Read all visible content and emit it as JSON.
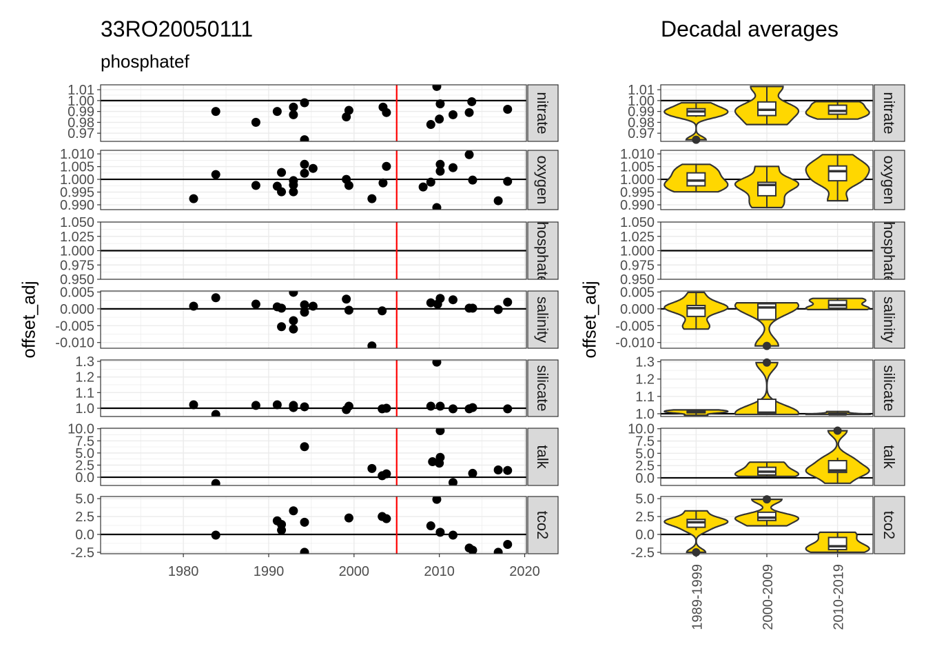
{
  "title": "33RO20050111",
  "subtitle": "phosphatef",
  "right_title": "Decadal averages",
  "ylabel": "offset_adj",
  "chart_data": [
    {
      "type": "scatter",
      "title": "33RO20050111",
      "subtitle": "phosphatef",
      "xlabel": "",
      "ylabel": "offset_adj",
      "xlim": [
        1970.3,
        2020.2
      ],
      "xticks": [
        "1980",
        "1990",
        "2000",
        "2010",
        "2020"
      ],
      "vline": {
        "x": 2005,
        "color": "#FF0000"
      },
      "grid": true,
      "point_color": "#000000",
      "facets": [
        {
          "name": "nitrate",
          "ref": 1,
          "ylim": [
            0.9625,
            1.0145
          ],
          "ticks": [
            "0.97",
            "0.98",
            "0.99",
            "1.00",
            "1.01"
          ],
          "points": [
            [
              1983.8,
              0.99
            ],
            [
              1988.5,
              0.98
            ],
            [
              1991.0,
              0.99
            ],
            [
              1992.9,
              0.994
            ],
            [
              1992.9,
              0.987
            ],
            [
              1994.2,
              0.998
            ],
            [
              1994.2,
              0.964
            ],
            [
              1999.1,
              0.985
            ],
            [
              1999.4,
              0.991
            ],
            [
              2003.4,
              0.994
            ],
            [
              2003.8,
              0.989
            ],
            [
              2009.0,
              0.978
            ],
            [
              2009.7,
              1.013
            ],
            [
              2010.0,
              0.983
            ],
            [
              2010.1,
              0.997
            ],
            [
              2011.6,
              0.987
            ],
            [
              2013.5,
              0.989
            ],
            [
              2013.8,
              0.999
            ],
            [
              2018.0,
              0.992
            ]
          ]
        },
        {
          "name": "oxygen",
          "ref": 1,
          "ylim": [
            0.9881,
            1.0114
          ],
          "ticks": [
            "0.990",
            "0.995",
            "1.000",
            "1.005",
            "1.010"
          ],
          "points": [
            [
              1981.2,
              0.9924
            ],
            [
              1983.8,
              1.0019
            ],
            [
              1988.5,
              0.9976
            ],
            [
              1991.0,
              0.9973
            ],
            [
              1991.5,
              0.9951
            ],
            [
              1991.5,
              1.0027
            ],
            [
              1992.9,
              0.9995
            ],
            [
              1992.9,
              0.9978
            ],
            [
              1992.9,
              0.9951
            ],
            [
              1994.2,
              1.0059
            ],
            [
              1994.2,
              1.0024
            ],
            [
              1995.2,
              1.0043
            ],
            [
              1999.1,
              1.0
            ],
            [
              1999.4,
              0.9976
            ],
            [
              2002.1,
              0.9924
            ],
            [
              2003.4,
              0.9986
            ],
            [
              2003.8,
              1.0051
            ],
            [
              2008.1,
              0.997
            ],
            [
              2009.0,
              0.9989
            ],
            [
              2009.7,
              0.9889
            ],
            [
              2010.1,
              1.0032
            ],
            [
              2010.1,
              1.0059
            ],
            [
              2011.6,
              1.0046
            ],
            [
              2013.5,
              1.0097
            ],
            [
              2013.9,
              0.9997
            ],
            [
              2016.9,
              0.9916
            ],
            [
              2018.0,
              0.9992
            ]
          ]
        },
        {
          "name": "phosphatef",
          "ref": 1,
          "ylim": [
            0.95,
            1.05
          ],
          "ticks": [
            "0.950",
            "0.975",
            "1.000",
            "1.025",
            "1.050"
          ],
          "points": []
        },
        {
          "name": "salinity",
          "ref": 0,
          "ylim": [
            -0.0117,
            0.0053
          ],
          "ticks": [
            "-0.010",
            "-0.005",
            "0.000",
            "0.005"
          ],
          "points": [
            [
              1981.2,
              0.0008
            ],
            [
              1983.8,
              0.0033
            ],
            [
              1988.5,
              0.0014
            ],
            [
              1991.0,
              0.0006
            ],
            [
              1991.5,
              0.0002
            ],
            [
              1991.5,
              -0.0053
            ],
            [
              1992.9,
              0.0049
            ],
            [
              1992.9,
              -0.0035
            ],
            [
              1992.9,
              -0.006
            ],
            [
              1994.2,
              0.0012
            ],
            [
              1994.2,
              -0.001
            ],
            [
              1995.2,
              0.0008
            ],
            [
              1999.1,
              0.0029
            ],
            [
              1999.4,
              -0.0004
            ],
            [
              2002.1,
              -0.011
            ],
            [
              2003.3,
              -0.0006
            ],
            [
              2009.0,
              0.0018
            ],
            [
              2009.8,
              0.0014
            ],
            [
              2010.1,
              0.0031
            ],
            [
              2011.6,
              0.0027
            ],
            [
              2013.5,
              0.0002
            ],
            [
              2013.9,
              0.0002
            ],
            [
              2016.9,
              -0.0002
            ],
            [
              2018.0,
              0.002
            ]
          ]
        },
        {
          "name": "silicate",
          "ref": 1,
          "ylim": [
            0.947,
            1.309
          ],
          "ticks": [
            "1.0",
            "1.1",
            "1.2",
            "1.3"
          ],
          "points": [
            [
              1981.2,
              1.022
            ],
            [
              1983.8,
              0.96
            ],
            [
              1988.5,
              1.018
            ],
            [
              1991.0,
              1.022
            ],
            [
              1992.9,
              1.018
            ],
            [
              1992.9,
              1.004
            ],
            [
              1994.2,
              1.009
            ],
            [
              1999.1,
              0.991
            ],
            [
              1999.4,
              1.013
            ],
            [
              2003.3,
              0.996
            ],
            [
              2003.8,
              1.0
            ],
            [
              2009.0,
              1.013
            ],
            [
              2009.7,
              1.295
            ],
            [
              2010.1,
              1.013
            ],
            [
              2011.6,
              0.996
            ],
            [
              2013.5,
              0.996
            ],
            [
              2013.9,
              1.004
            ],
            [
              2018.0,
              0.996
            ]
          ]
        },
        {
          "name": "talk",
          "ref": 0,
          "ylim": [
            -1.7,
            10.1
          ],
          "ticks": [
            "0.0",
            "2.5",
            "5.0",
            "7.5",
            "10.0"
          ],
          "points": [
            [
              1983.8,
              -1.3
            ],
            [
              1994.2,
              6.3
            ],
            [
              2002.1,
              1.8
            ],
            [
              2003.3,
              0.3
            ],
            [
              2003.8,
              0.7
            ],
            [
              2009.2,
              3.2
            ],
            [
              2010.0,
              2.9
            ],
            [
              2010.1,
              4.1
            ],
            [
              2010.1,
              9.6
            ],
            [
              2011.6,
              -1.1
            ],
            [
              2013.9,
              0.8
            ],
            [
              2016.9,
              1.5
            ],
            [
              2018.0,
              1.4
            ]
          ]
        },
        {
          "name": "tco2",
          "ref": 0,
          "ylim": [
            -2.7,
            5.3
          ],
          "ticks": [
            "-2.5",
            "0.0",
            "2.5",
            "5.0"
          ],
          "points": [
            [
              1983.8,
              -0.1
            ],
            [
              1991.0,
              1.9
            ],
            [
              1991.5,
              1.4
            ],
            [
              1991.5,
              0.6
            ],
            [
              1992.9,
              3.3
            ],
            [
              1994.2,
              1.7
            ],
            [
              1994.2,
              -2.5
            ],
            [
              1999.4,
              2.3
            ],
            [
              2003.3,
              2.5
            ],
            [
              2003.8,
              2.2
            ],
            [
              2009.0,
              1.2
            ],
            [
              2009.7,
              4.9
            ],
            [
              2010.1,
              0.3
            ],
            [
              2011.6,
              -0.1
            ],
            [
              2013.5,
              -1.9
            ],
            [
              2013.9,
              -2.2
            ],
            [
              2016.9,
              -2.5
            ],
            [
              2018.0,
              -1.4
            ]
          ]
        }
      ]
    },
    {
      "type": "violin",
      "title": "Decadal averages",
      "xlabel": "",
      "ylabel": "offset_adj",
      "categories": [
        "1989-1999",
        "2000-2009",
        "2010-2019"
      ],
      "fill_color": "#FFD700",
      "outline_color": "#333333",
      "box_fill": "#FFFFFF",
      "grid": true,
      "facets": [
        {
          "name": "nitrate",
          "ref": 1,
          "ylim": [
            0.9625,
            1.0145
          ],
          "ticks": [
            "0.97",
            "0.98",
            "0.99",
            "1.00",
            "1.01"
          ]
        },
        {
          "name": "oxygen",
          "ref": 1,
          "ylim": [
            0.9881,
            1.0114
          ],
          "ticks": [
            "0.990",
            "0.995",
            "1.000",
            "1.005",
            "1.010"
          ]
        },
        {
          "name": "phosphatef",
          "ref": 1,
          "ylim": [
            0.95,
            1.05
          ],
          "ticks": [
            "0.950",
            "0.975",
            "1.000",
            "1.025",
            "1.050"
          ]
        },
        {
          "name": "salinity",
          "ref": 0,
          "ylim": [
            -0.0117,
            0.0053
          ],
          "ticks": [
            "-0.010",
            "-0.005",
            "0.000",
            "0.005"
          ]
        },
        {
          "name": "silicate",
          "ref": 1,
          "ylim": [
            0.984,
            1.31
          ],
          "ticks": [
            "1.0",
            "1.1",
            "1.2",
            "1.3"
          ]
        },
        {
          "name": "talk",
          "ref": 0,
          "ylim": [
            -1.55,
            10.1
          ],
          "ticks": [
            "0.0",
            "2.5",
            "5.0",
            "7.5",
            "10.0"
          ]
        },
        {
          "name": "tco2",
          "ref": 0,
          "ylim": [
            -2.7,
            5.3
          ],
          "ticks": [
            "-2.5",
            "0.0",
            "2.5",
            "5.0"
          ]
        }
      ]
    }
  ]
}
